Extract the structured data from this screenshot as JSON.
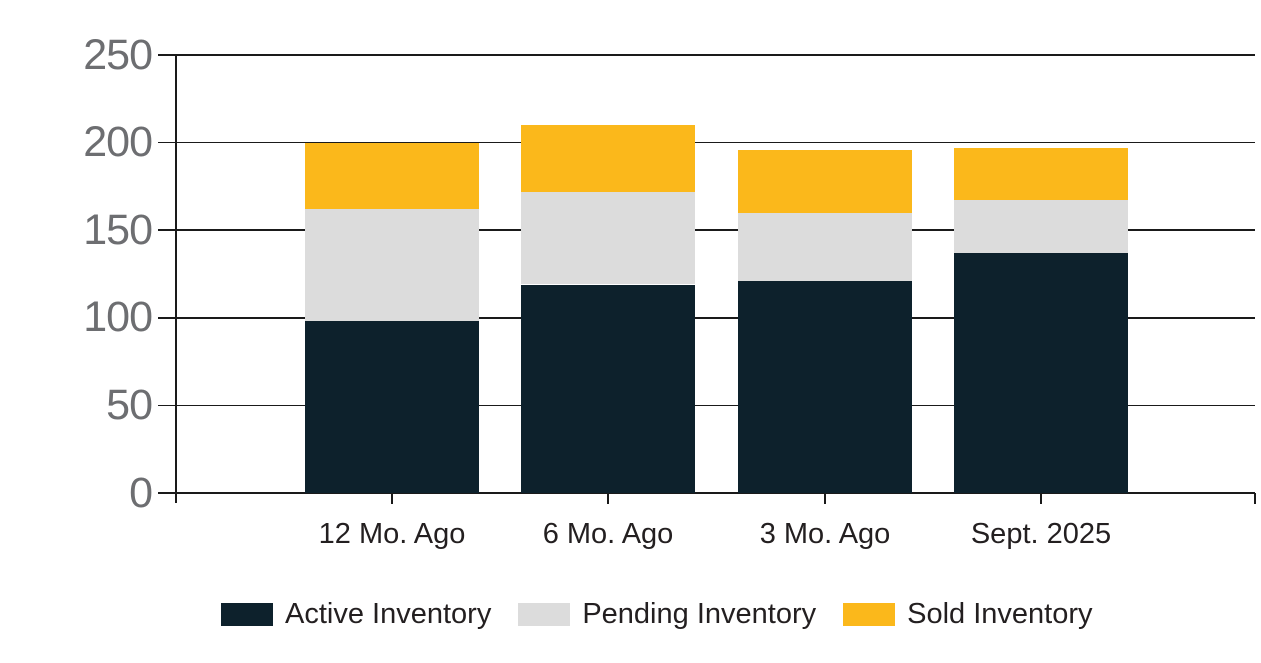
{
  "chart_data": {
    "type": "bar",
    "stacked": true,
    "title": "",
    "categories": [
      "12 Mo. Ago",
      "6 Mo. Ago",
      "3 Mo. Ago",
      "Sept. 2025"
    ],
    "series": [
      {
        "name": "Active Inventory",
        "values": [
          98,
          119,
          121,
          137
        ],
        "color": "#0d212c"
      },
      {
        "name": "Pending Inventory",
        "values": [
          64,
          53,
          39,
          30
        ],
        "color": "#dcdcdc"
      },
      {
        "name": "Sold Inventory",
        "values": [
          38,
          38,
          36,
          30
        ],
        "color": "#fbb81b"
      }
    ],
    "ylim": [
      0,
      250
    ],
    "yticks": [
      0,
      50,
      100,
      150,
      200,
      250
    ],
    "grid": true,
    "legend_position": "bottom"
  },
  "colors": {
    "background": "#ffffff",
    "axis_text": "#6d6e71",
    "label_text": "#231f20",
    "gridline": "#1a1a1a"
  }
}
